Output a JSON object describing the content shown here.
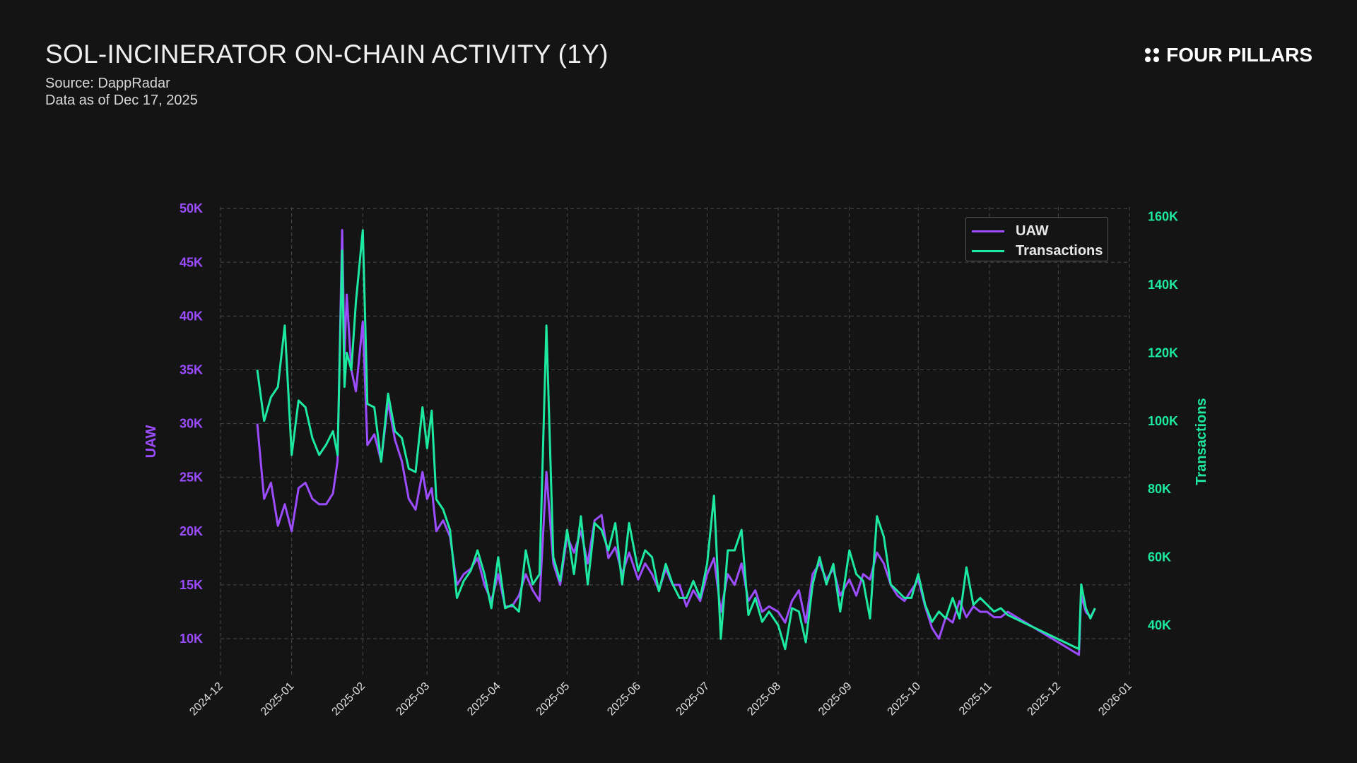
{
  "header": {
    "title": "SOL-INCINERATOR ON-CHAIN ACTIVITY (1Y)",
    "source": "Source: DappRadar",
    "as_of": "Data as of Dec 17, 2025",
    "brand": "FOUR PILLARS"
  },
  "chart_data": {
    "type": "line",
    "title": "SOL-INCINERATOR ON-CHAIN ACTIVITY (1Y)",
    "xlabel": "",
    "ylabel": "UAW",
    "y2label": "Transactions",
    "xlim": [
      "2024-12-01",
      "2026-01-01"
    ],
    "ylim": [
      5000,
      51500
    ],
    "y2lim": [
      20000,
      165000
    ],
    "grid": true,
    "legend_position": "top-right",
    "x_ticks": [
      "2024-12",
      "2025-01",
      "2025-02",
      "2025-03",
      "2025-04",
      "2025-05",
      "2025-06",
      "2025-07",
      "2025-08",
      "2025-09",
      "2025-10",
      "2025-11",
      "2025-12",
      "2026-01"
    ],
    "y_ticks": [
      "10K",
      "15K",
      "20K",
      "25K",
      "30K",
      "35K",
      "40K",
      "45K",
      "50K"
    ],
    "y_tick_values": [
      10000,
      15000,
      20000,
      25000,
      30000,
      35000,
      40000,
      45000,
      50000
    ],
    "y2_ticks": [
      "40K",
      "60K",
      "80K",
      "100K",
      "120K",
      "140K",
      "160K"
    ],
    "y2_tick_values": [
      40000,
      60000,
      80000,
      100000,
      120000,
      140000,
      160000
    ],
    "colors": {
      "UAW": "#9b4dff",
      "Transactions": "#1de9a0"
    },
    "x": [
      "2024-12-17",
      "2024-12-20",
      "2024-12-23",
      "2024-12-26",
      "2024-12-29",
      "2025-01-01",
      "2025-01-04",
      "2025-01-07",
      "2025-01-10",
      "2025-01-13",
      "2025-01-16",
      "2025-01-19",
      "2025-01-21",
      "2025-01-23",
      "2025-01-24",
      "2025-01-25",
      "2025-01-27",
      "2025-01-29",
      "2025-02-01",
      "2025-02-03",
      "2025-02-06",
      "2025-02-09",
      "2025-02-12",
      "2025-02-15",
      "2025-02-18",
      "2025-02-21",
      "2025-02-24",
      "2025-02-27",
      "2025-03-01",
      "2025-03-03",
      "2025-03-05",
      "2025-03-08",
      "2025-03-11",
      "2025-03-14",
      "2025-03-17",
      "2025-03-20",
      "2025-03-23",
      "2025-03-26",
      "2025-03-29",
      "2025-04-01",
      "2025-04-04",
      "2025-04-07",
      "2025-04-10",
      "2025-04-13",
      "2025-04-16",
      "2025-04-19",
      "2025-04-22",
      "2025-04-25",
      "2025-04-28",
      "2025-05-01",
      "2025-05-04",
      "2025-05-07",
      "2025-05-10",
      "2025-05-13",
      "2025-05-16",
      "2025-05-19",
      "2025-05-22",
      "2025-05-25",
      "2025-05-28",
      "2025-06-01",
      "2025-06-04",
      "2025-06-07",
      "2025-06-10",
      "2025-06-13",
      "2025-06-16",
      "2025-06-19",
      "2025-06-22",
      "2025-06-25",
      "2025-06-28",
      "2025-07-01",
      "2025-07-04",
      "2025-07-07",
      "2025-07-10",
      "2025-07-13",
      "2025-07-16",
      "2025-07-19",
      "2025-07-22",
      "2025-07-25",
      "2025-07-28",
      "2025-08-01",
      "2025-08-04",
      "2025-08-07",
      "2025-08-10",
      "2025-08-13",
      "2025-08-16",
      "2025-08-19",
      "2025-08-22",
      "2025-08-25",
      "2025-08-28",
      "2025-09-01",
      "2025-09-04",
      "2025-09-07",
      "2025-09-10",
      "2025-09-13",
      "2025-09-16",
      "2025-09-19",
      "2025-09-22",
      "2025-09-25",
      "2025-09-28",
      "2025-10-01",
      "2025-10-04",
      "2025-10-07",
      "2025-10-10",
      "2025-10-13",
      "2025-10-16",
      "2025-10-19",
      "2025-10-22",
      "2025-10-25",
      "2025-10-28",
      "2025-10-31",
      "2025-11-03",
      "2025-11-06",
      "2025-11-09",
      "2025-12-10",
      "2025-12-11",
      "2025-12-13",
      "2025-12-15",
      "2025-12-17"
    ],
    "series": [
      {
        "name": "UAW",
        "axis": "left",
        "values": [
          30000,
          23000,
          24500,
          20500,
          22500,
          20000,
          24000,
          24500,
          23000,
          22500,
          22500,
          23500,
          26500,
          48000,
          36500,
          42000,
          35000,
          33000,
          39500,
          28000,
          29000,
          26500,
          32000,
          28500,
          26500,
          23000,
          22000,
          25500,
          23000,
          24000,
          20000,
          21000,
          19500,
          15000,
          16000,
          16500,
          17500,
          15000,
          13500,
          16000,
          13000,
          13000,
          14000,
          16000,
          14500,
          13500,
          25500,
          17000,
          15000,
          19500,
          18000,
          20000,
          17000,
          21000,
          21500,
          17500,
          18500,
          16000,
          18000,
          15500,
          17000,
          16000,
          14500,
          16500,
          15000,
          15000,
          13000,
          14500,
          13500,
          16000,
          17500,
          12500,
          16000,
          15000,
          17000,
          13500,
          14500,
          12500,
          13000,
          12500,
          11500,
          13500,
          14500,
          11500,
          16000,
          17000,
          15500,
          16500,
          14000,
          15500,
          14000,
          16000,
          15500,
          18000,
          17000,
          15000,
          14000,
          13500,
          14500,
          15500,
          13000,
          11000,
          10000,
          12000,
          11500,
          13500,
          12000,
          13000,
          12500,
          12500,
          12000,
          12000,
          12500,
          8500,
          14000,
          12500,
          12000,
          12800
        ]
      },
      {
        "name": "Transactions",
        "axis": "right",
        "values": [
          115000,
          100000,
          107000,
          110000,
          128000,
          90000,
          106000,
          104000,
          95000,
          90000,
          93000,
          97000,
          90000,
          150000,
          110000,
          120000,
          115000,
          135000,
          156000,
          105000,
          104000,
          88000,
          108000,
          97000,
          95000,
          86000,
          85000,
          104000,
          92000,
          103000,
          77000,
          74000,
          68000,
          48000,
          53000,
          56000,
          62000,
          55000,
          45000,
          60000,
          45000,
          46000,
          44000,
          62000,
          52000,
          55000,
          128000,
          60000,
          53000,
          68000,
          55000,
          72000,
          52000,
          70000,
          68000,
          62000,
          70000,
          52000,
          70000,
          56000,
          62000,
          60000,
          50000,
          58000,
          52000,
          48000,
          48000,
          53000,
          48000,
          58000,
          78000,
          36000,
          62000,
          62000,
          68000,
          43000,
          48000,
          41000,
          44000,
          40000,
          33000,
          45000,
          44000,
          35000,
          52000,
          60000,
          52000,
          58000,
          44000,
          62000,
          55000,
          53000,
          42000,
          72000,
          66000,
          52000,
          50000,
          48000,
          48000,
          55000,
          46000,
          41000,
          44000,
          42000,
          48000,
          42000,
          57000,
          46000,
          48000,
          46000,
          44000,
          45000,
          43000,
          33000,
          52000,
          45000,
          42000,
          45000
        ]
      }
    ]
  }
}
